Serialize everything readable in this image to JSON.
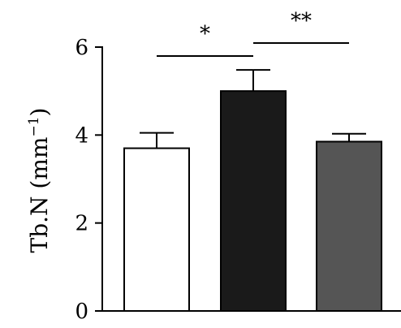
{
  "chart_data": {
    "type": "bar",
    "title": "",
    "xlabel": "",
    "ylabel": "Tb.N (mm",
    "ylabel_superscript": "−1",
    "ylabel_suffix": ")",
    "ylim": [
      0,
      6
    ],
    "yticks": [
      0,
      2,
      4,
      6
    ],
    "ytick_labels": [
      "0",
      "2",
      "4",
      "6"
    ],
    "categories": [
      "",
      "",
      ""
    ],
    "values": [
      3.7,
      5.0,
      3.85
    ],
    "errors": [
      0.35,
      0.48,
      0.18
    ],
    "bar_colors": [
      "#ffffff",
      "#1a1a1a",
      "#555555"
    ],
    "significance": [
      {
        "groups": [
          0,
          1
        ],
        "label": "*"
      },
      {
        "groups": [
          1,
          2
        ],
        "label": "**"
      }
    ],
    "grid": false,
    "legend": "none"
  }
}
